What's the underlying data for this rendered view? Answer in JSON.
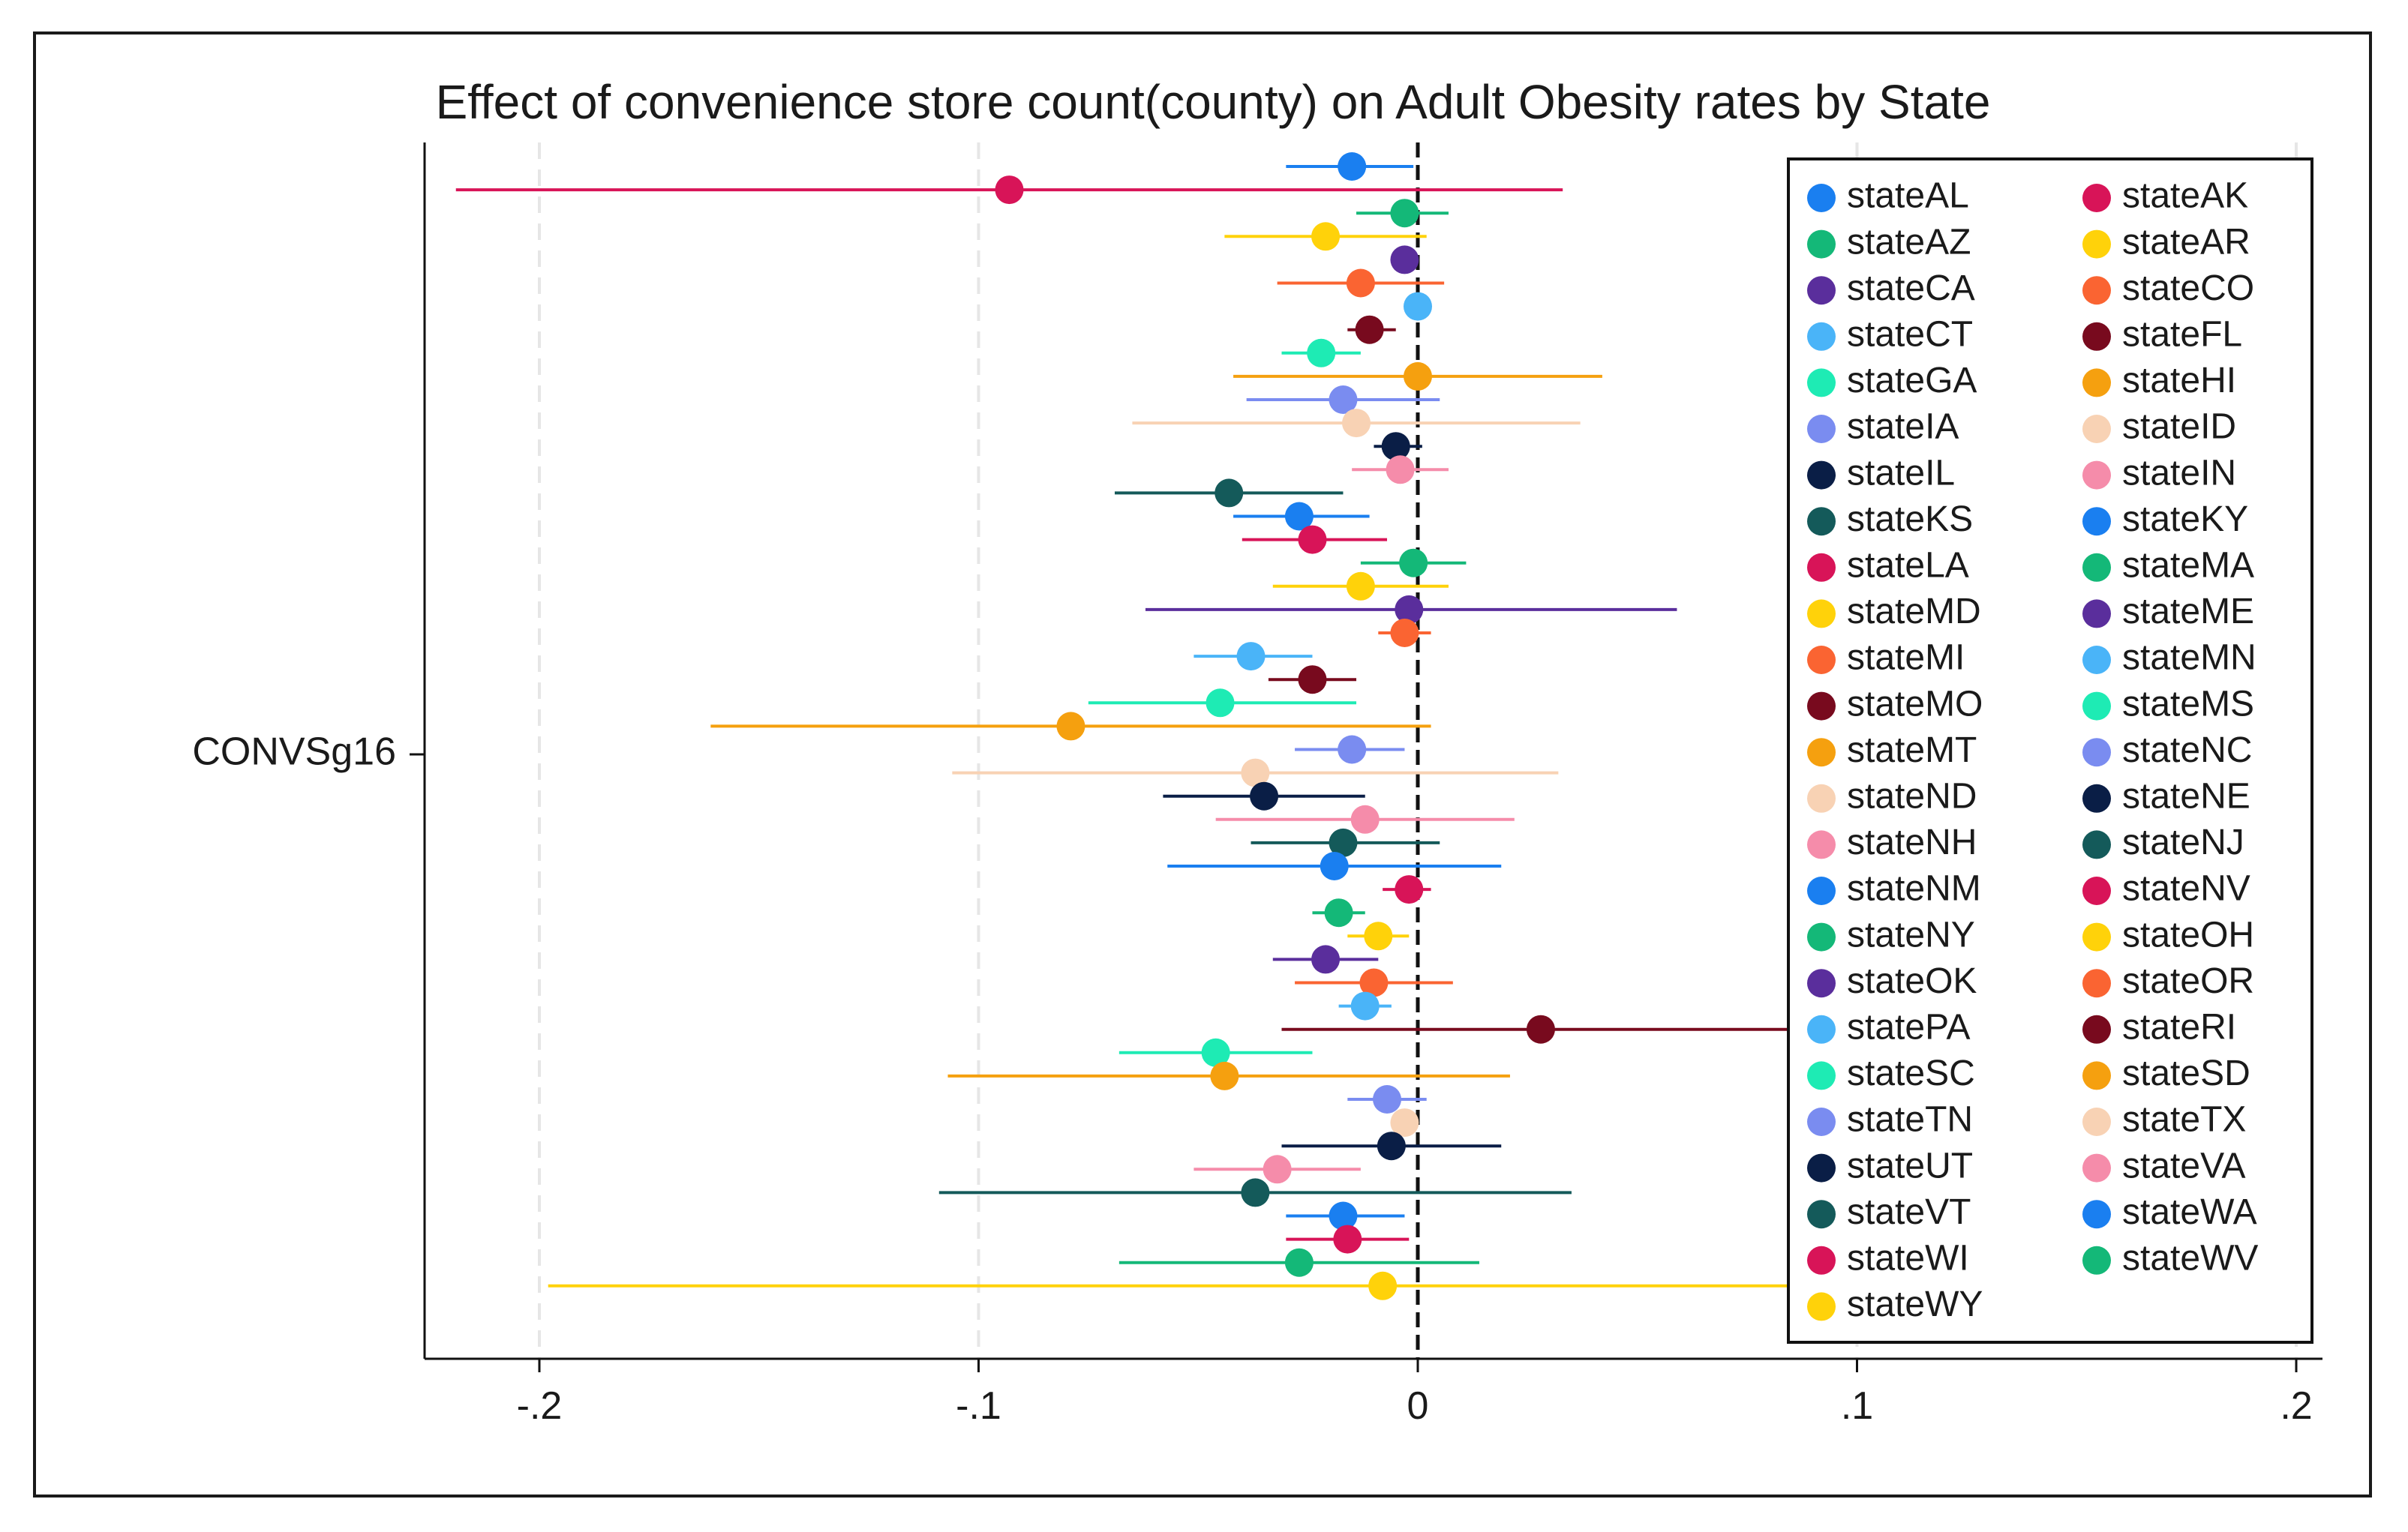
{
  "chart_data": {
    "type": "scatter",
    "title": "Effect of convenience store count(county) on Adult Obesity rates by State",
    "ylabel": "CONVSg16",
    "xlabel": "",
    "xlim": [
      -0.226,
      0.207
    ],
    "xticks": [
      -0.2,
      -0.1,
      0,
      0.1,
      0.2
    ],
    "xtick_labels": [
      "-.2",
      "-.1",
      "0",
      ".1",
      ".2"
    ],
    "grid": "vertical dashed",
    "reference_line": 0,
    "legend_position": "right",
    "legend_columns": 2,
    "series": [
      {
        "name": "stateAL",
        "color": "#1a7ff0",
        "estimate": -0.015,
        "ci_low": -0.03,
        "ci_high": -0.001
      },
      {
        "name": "stateAK",
        "color": "#d81458",
        "estimate": -0.093,
        "ci_low": -0.219,
        "ci_high": 0.033
      },
      {
        "name": "stateAZ",
        "color": "#14b878",
        "estimate": -0.003,
        "ci_low": -0.014,
        "ci_high": 0.007
      },
      {
        "name": "stateAR",
        "color": "#ffd20a",
        "estimate": -0.021,
        "ci_low": -0.044,
        "ci_high": 0.002
      },
      {
        "name": "stateCA",
        "color": "#5a2e9c",
        "estimate": -0.003,
        "ci_low": -0.006,
        "ci_high": 0.0
      },
      {
        "name": "stateCO",
        "color": "#fa6432",
        "estimate": -0.013,
        "ci_low": -0.032,
        "ci_high": 0.006
      },
      {
        "name": "stateCT",
        "color": "#4ab4f8",
        "estimate": 0.0,
        "ci_low": -0.001,
        "ci_high": 0.001
      },
      {
        "name": "stateFL",
        "color": "#780a1e",
        "estimate": -0.011,
        "ci_low": -0.016,
        "ci_high": -0.005
      },
      {
        "name": "stateGA",
        "color": "#1eebb4",
        "estimate": -0.022,
        "ci_low": -0.031,
        "ci_high": -0.013
      },
      {
        "name": "stateHI",
        "color": "#f5a00f",
        "estimate": 0.0,
        "ci_low": -0.042,
        "ci_high": 0.042
      },
      {
        "name": "stateIA",
        "color": "#7a8cf0",
        "estimate": -0.017,
        "ci_low": -0.039,
        "ci_high": 0.005
      },
      {
        "name": "stateID",
        "color": "#f8d2b4",
        "estimate": -0.014,
        "ci_low": -0.065,
        "ci_high": 0.037
      },
      {
        "name": "stateIL",
        "color": "#0a1e46",
        "estimate": -0.005,
        "ci_low": -0.01,
        "ci_high": 0.001
      },
      {
        "name": "stateIN",
        "color": "#f58caa",
        "estimate": -0.004,
        "ci_low": -0.015,
        "ci_high": 0.007
      },
      {
        "name": "stateKS",
        "color": "#145a5a",
        "estimate": -0.043,
        "ci_low": -0.069,
        "ci_high": -0.017
      },
      {
        "name": "stateKY",
        "color": "#1a7ff0",
        "estimate": -0.027,
        "ci_low": -0.042,
        "ci_high": -0.011
      },
      {
        "name": "stateLA",
        "color": "#d81458",
        "estimate": -0.024,
        "ci_low": -0.04,
        "ci_high": -0.007
      },
      {
        "name": "stateMA",
        "color": "#14b878",
        "estimate": -0.001,
        "ci_low": -0.013,
        "ci_high": 0.011
      },
      {
        "name": "stateMD",
        "color": "#ffd20a",
        "estimate": -0.013,
        "ci_low": -0.033,
        "ci_high": 0.007
      },
      {
        "name": "stateME",
        "color": "#5a2e9c",
        "estimate": -0.002,
        "ci_low": -0.062,
        "ci_high": 0.059
      },
      {
        "name": "stateMI",
        "color": "#fa6432",
        "estimate": -0.003,
        "ci_low": -0.009,
        "ci_high": 0.003
      },
      {
        "name": "stateMN",
        "color": "#4ab4f8",
        "estimate": -0.038,
        "ci_low": -0.051,
        "ci_high": -0.024
      },
      {
        "name": "stateMO",
        "color": "#780a1e",
        "estimate": -0.024,
        "ci_low": -0.034,
        "ci_high": -0.014
      },
      {
        "name": "stateMS",
        "color": "#1eebb4",
        "estimate": -0.045,
        "ci_low": -0.075,
        "ci_high": -0.014
      },
      {
        "name": "stateMT",
        "color": "#f5a00f",
        "estimate": -0.079,
        "ci_low": -0.161,
        "ci_high": 0.003
      },
      {
        "name": "stateNC",
        "color": "#7a8cf0",
        "estimate": -0.015,
        "ci_low": -0.028,
        "ci_high": -0.003
      },
      {
        "name": "stateND",
        "color": "#f8d2b4",
        "estimate": -0.037,
        "ci_low": -0.106,
        "ci_high": 0.032
      },
      {
        "name": "stateNE",
        "color": "#0a1e46",
        "estimate": -0.035,
        "ci_low": -0.058,
        "ci_high": -0.012
      },
      {
        "name": "stateNH",
        "color": "#f58caa",
        "estimate": -0.012,
        "ci_low": -0.046,
        "ci_high": 0.022
      },
      {
        "name": "stateNJ",
        "color": "#145a5a",
        "estimate": -0.017,
        "ci_low": -0.038,
        "ci_high": 0.005
      },
      {
        "name": "stateNM",
        "color": "#1a7ff0",
        "estimate": -0.019,
        "ci_low": -0.057,
        "ci_high": 0.019
      },
      {
        "name": "stateNV",
        "color": "#d81458",
        "estimate": -0.002,
        "ci_low": -0.008,
        "ci_high": 0.003
      },
      {
        "name": "stateNY",
        "color": "#14b878",
        "estimate": -0.018,
        "ci_low": -0.024,
        "ci_high": -0.012
      },
      {
        "name": "stateOH",
        "color": "#ffd20a",
        "estimate": -0.009,
        "ci_low": -0.016,
        "ci_high": -0.002
      },
      {
        "name": "stateOK",
        "color": "#5a2e9c",
        "estimate": -0.021,
        "ci_low": -0.033,
        "ci_high": -0.009
      },
      {
        "name": "stateOR",
        "color": "#fa6432",
        "estimate": -0.01,
        "ci_low": -0.028,
        "ci_high": 0.008
      },
      {
        "name": "statePA",
        "color": "#4ab4f8",
        "estimate": -0.012,
        "ci_low": -0.018,
        "ci_high": -0.006
      },
      {
        "name": "stateRI",
        "color": "#780a1e",
        "estimate": 0.028,
        "ci_low": -0.031,
        "ci_high": 0.087
      },
      {
        "name": "stateSC",
        "color": "#1eebb4",
        "estimate": -0.046,
        "ci_low": -0.068,
        "ci_high": -0.024
      },
      {
        "name": "stateSD",
        "color": "#f5a00f",
        "estimate": -0.044,
        "ci_low": -0.107,
        "ci_high": 0.021
      },
      {
        "name": "stateTN",
        "color": "#7a8cf0",
        "estimate": -0.007,
        "ci_low": -0.016,
        "ci_high": 0.002
      },
      {
        "name": "stateTX",
        "color": "#f8d2b4",
        "estimate": -0.003,
        "ci_low": -0.005,
        "ci_high": -0.001
      },
      {
        "name": "stateUT",
        "color": "#0a1e46",
        "estimate": -0.006,
        "ci_low": -0.031,
        "ci_high": 0.019
      },
      {
        "name": "stateVA",
        "color": "#f58caa",
        "estimate": -0.032,
        "ci_low": -0.051,
        "ci_high": -0.013
      },
      {
        "name": "stateVT",
        "color": "#145a5a",
        "estimate": -0.037,
        "ci_low": -0.109,
        "ci_high": 0.035
      },
      {
        "name": "stateWA",
        "color": "#1a7ff0",
        "estimate": -0.017,
        "ci_low": -0.03,
        "ci_high": -0.003
      },
      {
        "name": "stateWI",
        "color": "#d81458",
        "estimate": -0.016,
        "ci_low": -0.03,
        "ci_high": -0.002
      },
      {
        "name": "stateWV",
        "color": "#14b878",
        "estimate": -0.027,
        "ci_low": -0.068,
        "ci_high": 0.014
      },
      {
        "name": "stateWY",
        "color": "#ffd20a",
        "estimate": -0.008,
        "ci_low": -0.198,
        "ci_high": 0.182
      }
    ]
  }
}
